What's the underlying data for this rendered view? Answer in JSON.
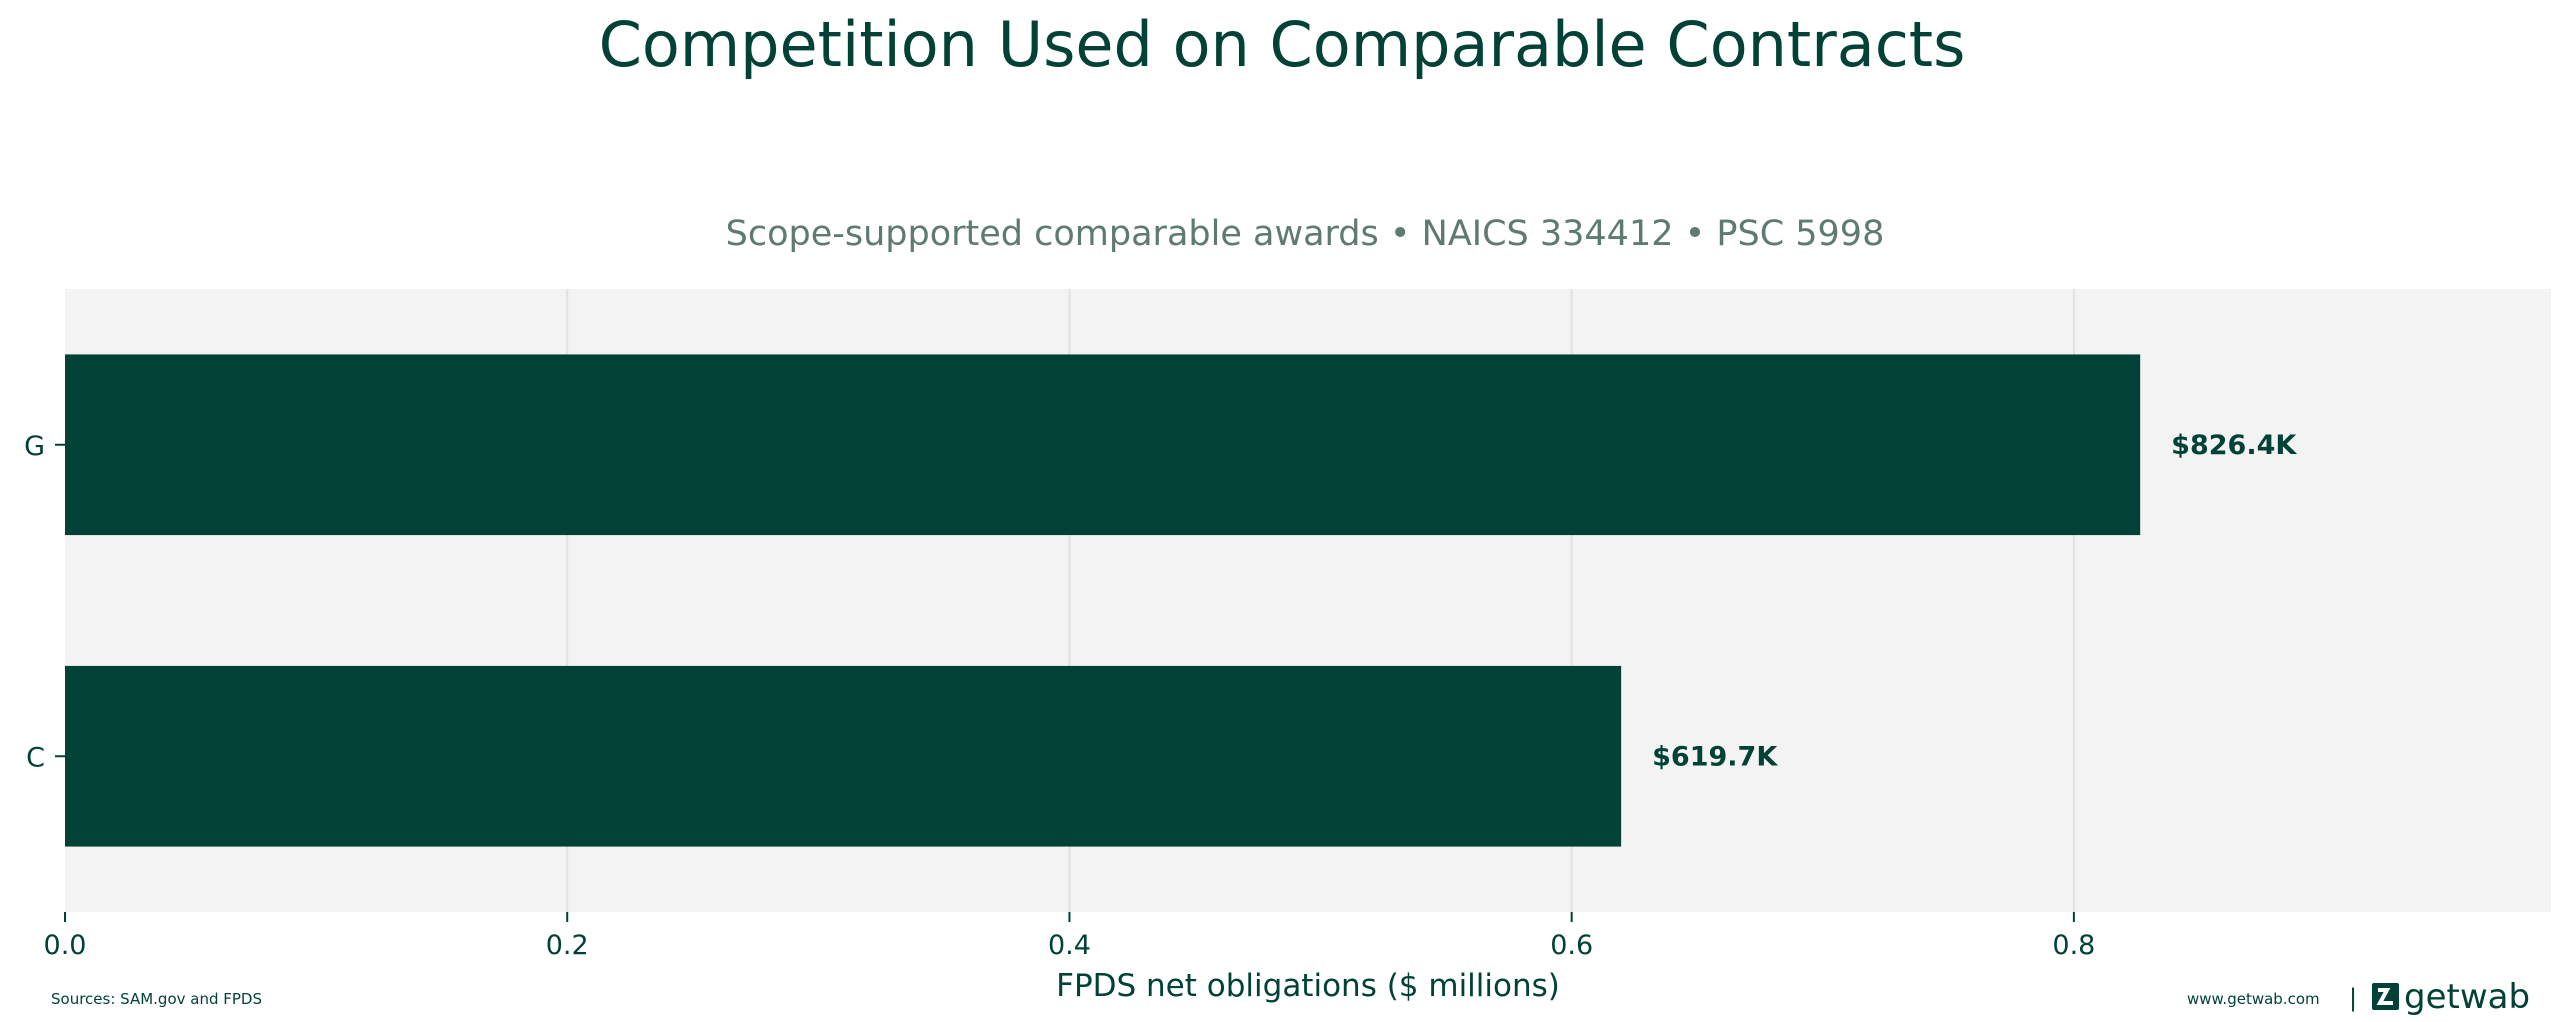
{
  "chart_data": {
    "type": "bar",
    "orientation": "horizontal",
    "title": "Competition Used on Comparable Contracts",
    "subtitle": "Scope-supported comparable awards • NAICS 334412 • PSC 5998",
    "xlabel": "FPDS net obligations ($ millions)",
    "ylabel": "",
    "categories": [
      "G",
      "C"
    ],
    "values": [
      0.8264,
      0.6197
    ],
    "data_labels": [
      "$826.4K",
      "$619.7K"
    ],
    "xlim": [
      0,
      0.99
    ],
    "xticks": [
      0.0,
      0.2,
      0.4,
      0.6,
      0.8
    ],
    "xtick_labels": [
      "0.0",
      "0.2",
      "0.4",
      "0.6",
      "0.8"
    ],
    "grid": "vertical",
    "colors": {
      "bar": "#024236",
      "plot_background": "#f2f3f2",
      "grid": "#dfe3e1",
      "text": "#024236",
      "subtitle": "#5e7a72"
    }
  },
  "footer": {
    "sources": "Sources: SAM.gov and FPDS",
    "website": "www.getwab.com",
    "separator": "|",
    "brand": "getwab"
  }
}
